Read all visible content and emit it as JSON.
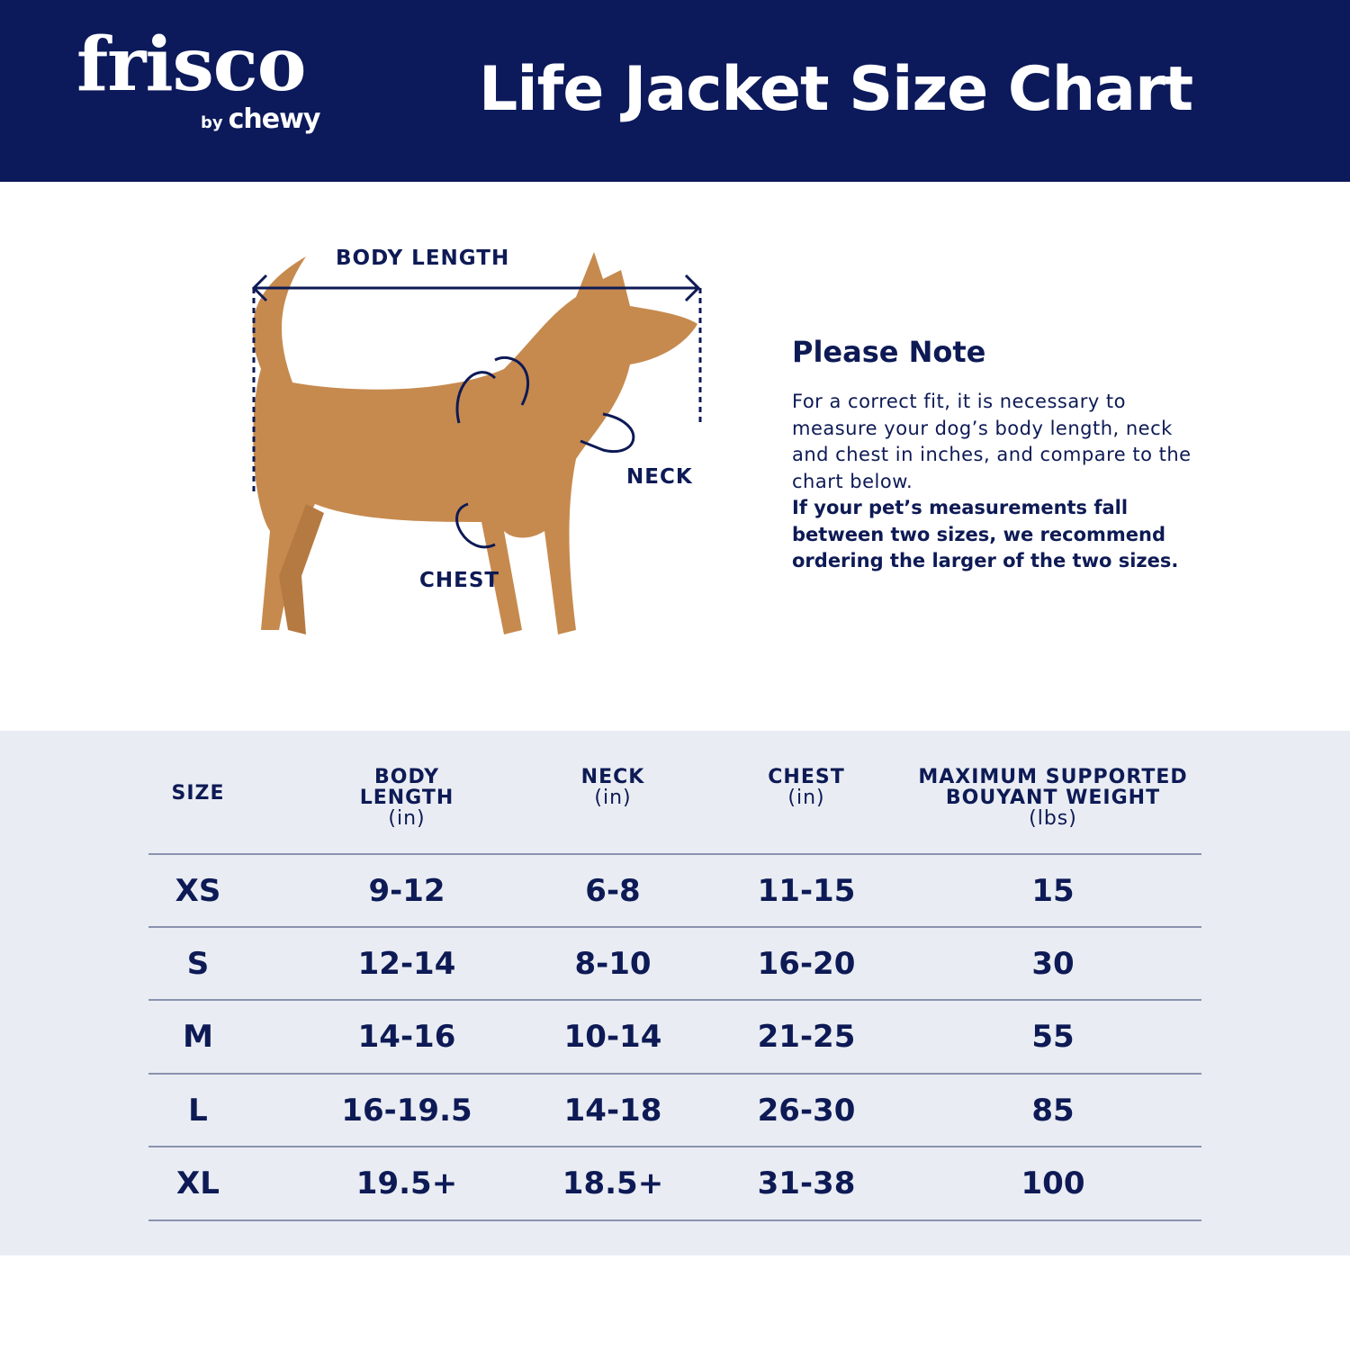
{
  "brand": {
    "logo_text": "frisco",
    "logo_sub_by": "by",
    "logo_sub_brand": "chewy",
    "navy": "#0c1a5b",
    "table_bg": "#e9edf3"
  },
  "title": "Life Jacket Size Chart",
  "diagram": {
    "body_length": "BODY LENGTH",
    "neck": "NECK",
    "chest": "CHEST"
  },
  "note": {
    "heading": "Please Note",
    "body": "For a correct fit, it is necessary to measure your dog’s body length, neck and chest in inches, and compare to the chart below.",
    "emphasis": "If your pet’s measurements fall between two sizes, we recommend ordering the larger of the two sizes."
  },
  "table": {
    "headers": [
      {
        "label": "SIZE",
        "unit": ""
      },
      {
        "label": "BODY LENGTH",
        "unit": "(in)"
      },
      {
        "label": "NECK",
        "unit": "(in)"
      },
      {
        "label": "CHEST",
        "unit": "(in)"
      },
      {
        "label": "MAXIMUM SUPPORTED BOUYANT WEIGHT",
        "unit": "(lbs)"
      }
    ],
    "rows": [
      [
        "XS",
        "9-12",
        "6-8",
        "11-15",
        "15"
      ],
      [
        "S",
        "12-14",
        "8-10",
        "16-20",
        "30"
      ],
      [
        "M",
        "14-16",
        "10-14",
        "21-25",
        "55"
      ],
      [
        "L",
        "16-19.5",
        "14-18",
        "26-30",
        "85"
      ],
      [
        "XL",
        "19.5+",
        "18.5+",
        "31-38",
        "100"
      ]
    ]
  }
}
